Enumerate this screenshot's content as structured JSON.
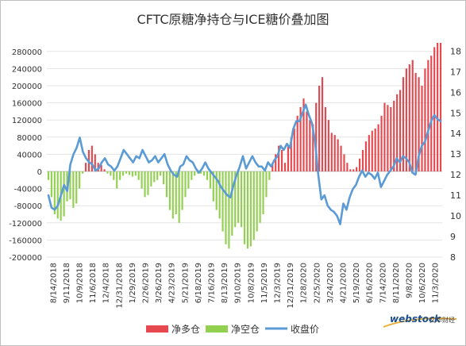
{
  "chart_data": {
    "type": "bar+line",
    "title": "CFTC原糖净持仓与ICE糖价叠加图",
    "y_left": {
      "min": -200000,
      "max": 300000,
      "ticks": [
        -200000,
        -160000,
        -120000,
        -80000,
        -40000,
        0,
        40000,
        80000,
        120000,
        160000,
        200000,
        240000,
        280000
      ]
    },
    "y_right": {
      "min": 8,
      "max": 18.4,
      "ticks": [
        8,
        9,
        10,
        11,
        12,
        13,
        14,
        15,
        16,
        17,
        18
      ]
    },
    "x_tick_labels": [
      "8/14/2018",
      "9/11/2018",
      "10/9/2018",
      "11/6/2018",
      "12/4/2018",
      "12/31/2018",
      "1/29/2019",
      "2/26/2019",
      "3/26/2019",
      "4/23/2019",
      "5/21/2019",
      "6/18/2019",
      "7/16/2019",
      "8/13/2019",
      "9/10/2019",
      "10/8/2019",
      "11/5/2019",
      "12/3/2019",
      "12/31/2019",
      "1/28/2020",
      "2/25/2020",
      "3/24/2020",
      "4/21/2020",
      "5/19/2020",
      "6/16/2020",
      "7/14/2020",
      "8/11/2020",
      "9/8/2020",
      "10/6/2020",
      "11/3/2020"
    ],
    "grid": true,
    "legend_position": "bottom",
    "series": [
      {
        "name": "净多仓",
        "color": "#e5494f",
        "kind": "bar-positive"
      },
      {
        "name": "净空仓",
        "color": "#92d050",
        "kind": "bar-negative"
      },
      {
        "name": "收盘价",
        "color": "#5b9bd5",
        "kind": "line",
        "axis": "right"
      }
    ],
    "net_position": [
      -20000,
      -60000,
      -100000,
      -110000,
      -115000,
      -105000,
      -70000,
      -65000,
      -85000,
      -75000,
      -40000,
      -5000,
      20000,
      50000,
      60000,
      40000,
      20000,
      15000,
      5000,
      -5000,
      -10000,
      -20000,
      -40000,
      -20000,
      -10000,
      -5000,
      -8000,
      -12000,
      -10000,
      -20000,
      -40000,
      -60000,
      -55000,
      -35000,
      -25000,
      -20000,
      -10000,
      -30000,
      -60000,
      -90000,
      -110000,
      -100000,
      -120000,
      -90000,
      -60000,
      -40000,
      -20000,
      -10000,
      -5000,
      -5000,
      -10000,
      -20000,
      -40000,
      -70000,
      -90000,
      -110000,
      -140000,
      -170000,
      -180000,
      -150000,
      -130000,
      -120000,
      -130000,
      -170000,
      -180000,
      -175000,
      -160000,
      -140000,
      -120000,
      -100000,
      -60000,
      -20000,
      20000,
      40000,
      60000,
      50000,
      20000,
      60000,
      80000,
      100000,
      130000,
      150000,
      170000,
      140000,
      120000,
      110000,
      160000,
      200000,
      220000,
      150000,
      120000,
      90000,
      85000,
      75000,
      60000,
      40000,
      20000,
      5000,
      5000,
      10000,
      30000,
      50000,
      70000,
      85000,
      95000,
      100000,
      110000,
      130000,
      160000,
      155000,
      150000,
      165000,
      180000,
      190000,
      220000,
      240000,
      250000,
      260000,
      230000,
      220000,
      200000,
      240000,
      260000,
      270000,
      290000,
      300000,
      300000
    ],
    "close_price": [
      11.0,
      10.4,
      10.3,
      10.5,
      11.0,
      11.5,
      11.2,
      12.5,
      13.0,
      13.3,
      13.8,
      13.1,
      12.8,
      12.6,
      12.5,
      12.2,
      12.3,
      12.6,
      12.8,
      12.5,
      12.4,
      12.2,
      12.4,
      12.8,
      13.2,
      13.0,
      12.8,
      12.6,
      12.9,
      12.8,
      13.2,
      12.9,
      12.6,
      12.7,
      12.9,
      12.6,
      12.8,
      13.0,
      12.5,
      12.2,
      12.0,
      11.9,
      12.4,
      12.5,
      12.9,
      12.7,
      12.6,
      12.3,
      12.1,
      12.3,
      12.6,
      12.3,
      12.1,
      11.9,
      11.7,
      11.4,
      11.2,
      11.0,
      10.9,
      11.5,
      12.0,
      12.4,
      12.9,
      12.3,
      12.6,
      12.9,
      12.6,
      12.4,
      12.4,
      12.2,
      12.6,
      12.4,
      12.7,
      12.9,
      13.4,
      13.2,
      13.5,
      13.3,
      14.2,
      14.6,
      14.6,
      15.0,
      15.4,
      14.9,
      14.5,
      13.6,
      12.0,
      10.8,
      11.0,
      10.5,
      10.3,
      10.2,
      10.0,
      9.6,
      10.6,
      10.3,
      10.9,
      11.3,
      11.5,
      11.9,
      12.2,
      11.9,
      12.1,
      12.0,
      11.8,
      12.1,
      11.4,
      11.7,
      12.0,
      12.2,
      12.4,
      12.8,
      12.6,
      12.9,
      12.8,
      12.6,
      12.1,
      12.0,
      12.9,
      13.4,
      13.6,
      14.1,
      14.6,
      14.9,
      14.7,
      14.6
    ]
  },
  "legend": {
    "long": "净多仓",
    "short": "净空仓",
    "price": "收盘价"
  },
  "watermark": {
    "brand": "webstock",
    "cn": "文华财经"
  }
}
